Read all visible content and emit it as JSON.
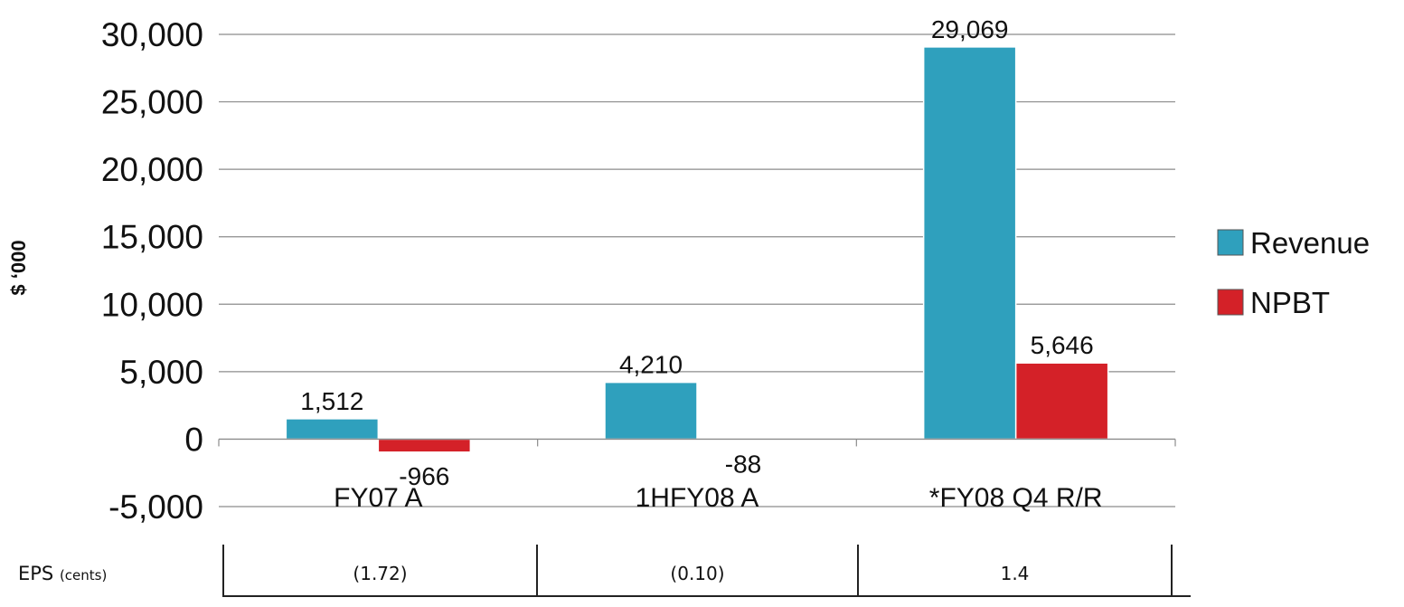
{
  "chart_data": {
    "type": "bar",
    "categories": [
      "FY07 A",
      "1HFY08 A",
      "*FY08 Q4 R/R"
    ],
    "series": [
      {
        "name": "Revenue",
        "values": [
          1512,
          4210,
          29069
        ],
        "labels": [
          "1,512",
          "4,210",
          "29,069"
        ],
        "color": "#2fa0bd"
      },
      {
        "name": "NPBT",
        "values": [
          -966,
          -88,
          5646
        ],
        "labels": [
          "-966",
          "-88",
          "5,646"
        ],
        "color": "#d42128"
      }
    ],
    "ylabel": "$ ‘000",
    "ylim": [
      -5000,
      30000
    ],
    "ticks": [
      {
        "value": -5000,
        "label": "-5,000"
      },
      {
        "value": 0,
        "label": "0"
      },
      {
        "value": 5000,
        "label": "5,000"
      },
      {
        "value": 10000,
        "label": "10,000"
      },
      {
        "value": 15000,
        "label": "15,000"
      },
      {
        "value": 20000,
        "label": "20,000"
      },
      {
        "value": 25000,
        "label": "25,000"
      },
      {
        "value": 30000,
        "label": "30,000"
      }
    ],
    "grid": true,
    "legend_position": "right"
  },
  "eps": {
    "label": "EPS",
    "unit": "(cents)",
    "values": [
      "(1.72)",
      "(0.10)",
      "1.4"
    ]
  }
}
